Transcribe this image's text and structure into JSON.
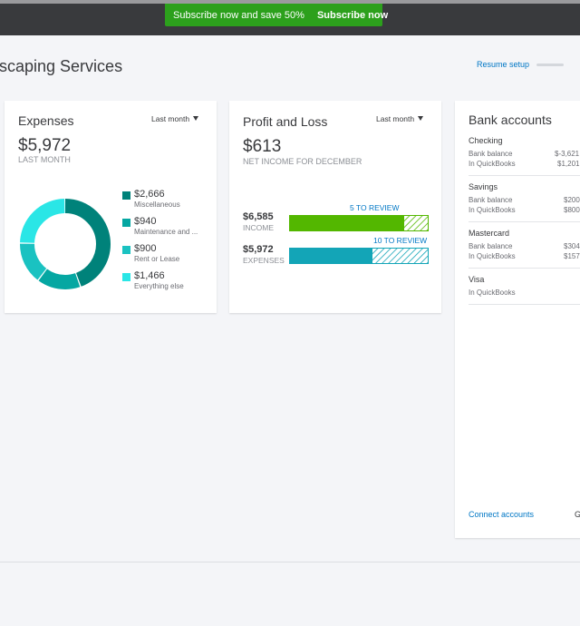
{
  "promo": {
    "text": "Subscribe now and save 50%",
    "link": "Subscribe now"
  },
  "header": {
    "company": "scaping Services",
    "resume_setup": "Resume setup"
  },
  "expenses": {
    "title": "Expenses",
    "period": "Last month",
    "total": "$5,972",
    "subtitle": "LAST MONTH",
    "colors": [
      "#00827a",
      "#05a7a2",
      "#1ac2c1",
      "#2ae6e6"
    ],
    "legend": [
      {
        "value": "$2,666",
        "label": "Miscellaneous",
        "amount": 2666,
        "color": "#00827a"
      },
      {
        "value": "$940",
        "label": "Maintenance and ...",
        "amount": 940,
        "color": "#05a7a2"
      },
      {
        "value": "$900",
        "label": "Rent or Lease",
        "amount": 900,
        "color": "#1ac2c1"
      },
      {
        "value": "$1,466",
        "label": "Everything else",
        "amount": 1466,
        "color": "#2ae6e6"
      }
    ]
  },
  "profit_loss": {
    "title": "Profit and Loss",
    "period": "Last month",
    "net": "$613",
    "subtitle": "NET INCOME FOR DECEMBER",
    "income": {
      "amount": "$6,585",
      "label": "INCOME",
      "review": "5 TO REVIEW",
      "color": "#53b700",
      "reviewed_fraction": 0.82
    },
    "expenses": {
      "amount": "$5,972",
      "label": "EXPENSES",
      "review": "10 TO REVIEW",
      "color": "#13a5b7",
      "reviewed_fraction": 0.59
    }
  },
  "bank": {
    "title": "Bank accounts",
    "accounts": [
      {
        "name": "Checking",
        "rows": [
          {
            "label": "Bank balance",
            "value": "$-3,621"
          },
          {
            "label": "In QuickBooks",
            "value": "$1,201"
          }
        ]
      },
      {
        "name": "Savings",
        "rows": [
          {
            "label": "Bank balance",
            "value": "$200"
          },
          {
            "label": "In QuickBooks",
            "value": "$800"
          }
        ]
      },
      {
        "name": "Mastercard",
        "rows": [
          {
            "label": "Bank balance",
            "value": "$304"
          },
          {
            "label": "In QuickBooks",
            "value": "$157"
          }
        ]
      },
      {
        "name": "Visa",
        "rows": [
          {
            "label": "In QuickBooks",
            "value": ""
          }
        ]
      }
    ],
    "connect": "Connect accounts",
    "go": "G"
  }
}
